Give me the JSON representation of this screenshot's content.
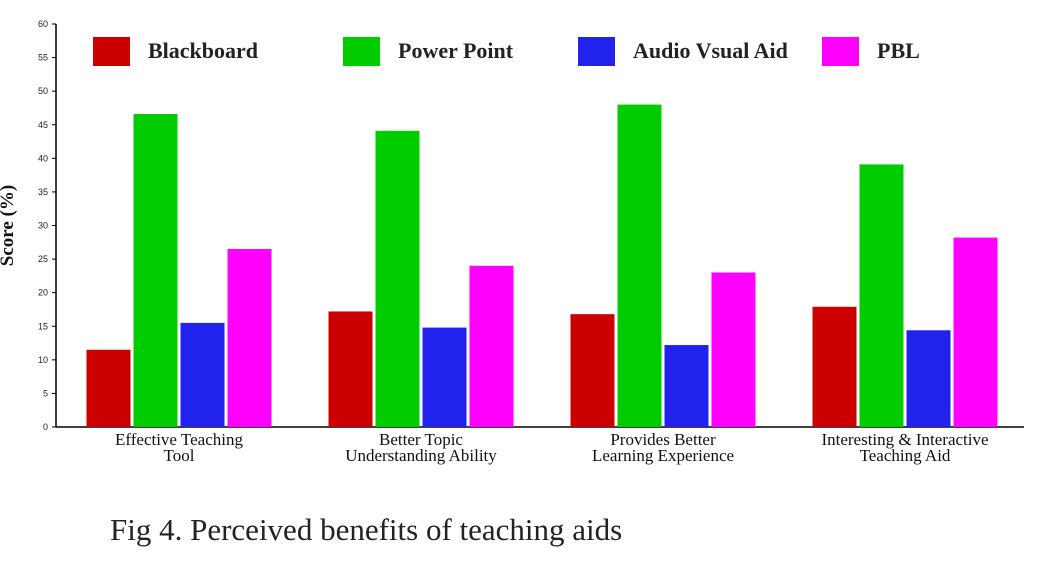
{
  "chart_data": {
    "type": "bar",
    "categories": [
      [
        "Effective Teaching",
        "Tool"
      ],
      [
        "Better Topic",
        "Understanding Ability"
      ],
      [
        "Provides Better",
        "Learning Experience"
      ],
      [
        "Interesting & Interactive",
        "Teaching Aid"
      ]
    ],
    "series": [
      {
        "name": "Blackboard",
        "color": "#cc0000",
        "values": [
          11.5,
          17.2,
          16.8,
          17.9
        ]
      },
      {
        "name": "Power Point",
        "color": "#00cc00",
        "values": [
          46.6,
          44.1,
          48.0,
          39.1
        ]
      },
      {
        "name": "Audio Vsual Aid",
        "color": "#2222ee",
        "values": [
          15.5,
          14.8,
          12.2,
          14.4
        ]
      },
      {
        "name": "PBL",
        "color": "#ff00ff",
        "values": [
          26.5,
          24.0,
          23.0,
          28.2
        ]
      }
    ],
    "ylabel": "Score (%)",
    "ylim": [
      0,
      60
    ],
    "yticks": [
      0,
      5,
      10,
      15,
      20,
      25,
      30,
      35,
      40,
      45,
      50,
      55,
      60
    ],
    "legend_position": "top",
    "grid": false
  },
  "caption": "Fig 4. Perceived benefits of teaching aids"
}
